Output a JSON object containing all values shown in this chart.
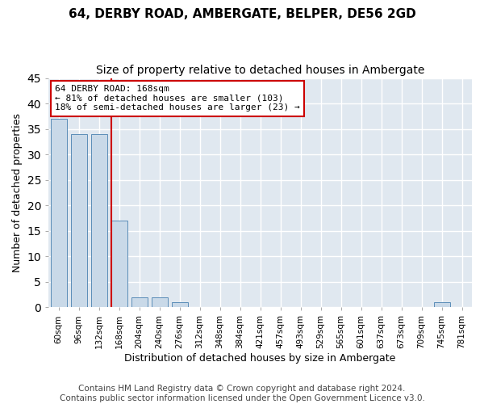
{
  "title1": "64, DERBY ROAD, AMBERGATE, BELPER, DE56 2GD",
  "title2": "Size of property relative to detached houses in Ambergate",
  "xlabel": "Distribution of detached houses by size in Ambergate",
  "ylabel": "Number of detached properties",
  "categories": [
    "60sqm",
    "96sqm",
    "132sqm",
    "168sqm",
    "204sqm",
    "240sqm",
    "276sqm",
    "312sqm",
    "348sqm",
    "384sqm",
    "421sqm",
    "457sqm",
    "493sqm",
    "529sqm",
    "565sqm",
    "601sqm",
    "637sqm",
    "673sqm",
    "709sqm",
    "745sqm",
    "781sqm"
  ],
  "values": [
    37,
    34,
    34,
    17,
    2,
    2,
    1,
    0,
    0,
    0,
    0,
    0,
    0,
    0,
    0,
    0,
    0,
    0,
    0,
    1,
    0
  ],
  "bar_color": "#c9d9e8",
  "bar_edge_color": "#5b8db8",
  "red_line_index": 3,
  "ylim": [
    0,
    45
  ],
  "yticks": [
    0,
    5,
    10,
    15,
    20,
    25,
    30,
    35,
    40,
    45
  ],
  "annotation_line1": "64 DERBY ROAD: 168sqm",
  "annotation_line2": "← 81% of detached houses are smaller (103)",
  "annotation_line3": "18% of semi-detached houses are larger (23) →",
  "annotation_box_color": "#ffffff",
  "annotation_box_edge_color": "#cc0000",
  "footer_text": "Contains HM Land Registry data © Crown copyright and database right 2024.\nContains public sector information licensed under the Open Government Licence v3.0.",
  "background_color": "#e0e8f0",
  "grid_color": "#ffffff",
  "title1_fontsize": 11,
  "title2_fontsize": 10,
  "xlabel_fontsize": 9,
  "ylabel_fontsize": 9,
  "footer_fontsize": 7.5
}
